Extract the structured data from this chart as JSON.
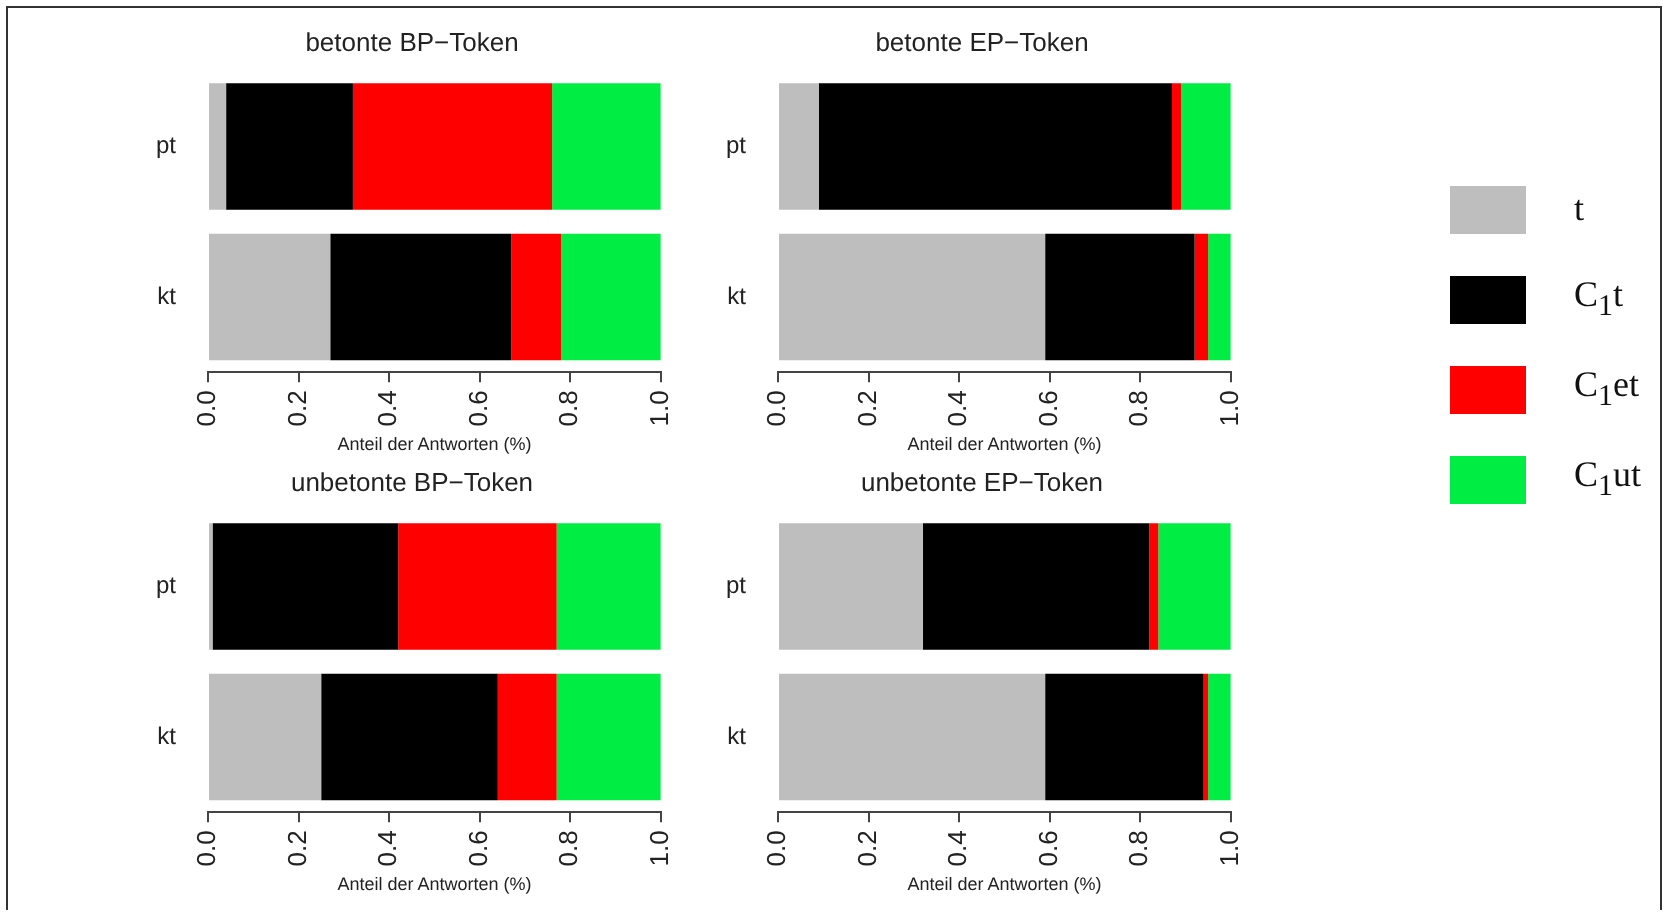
{
  "chart_data": [
    {
      "type": "bar",
      "orientation": "horizontal",
      "stacked": true,
      "title": "betonte BP−Token",
      "xlabel": "Anteil der Antworten (%)",
      "categories": [
        "pt",
        "kt"
      ],
      "xlim": [
        0,
        1
      ],
      "xticks": [
        {
          "value": 0,
          "label": "0.0"
        },
        {
          "value": 0.2,
          "label": "0.2"
        },
        {
          "value": 0.4,
          "label": "0.4"
        },
        {
          "value": 0.6,
          "label": "0.6"
        },
        {
          "value": 0.8,
          "label": "0.8"
        },
        {
          "value": 1,
          "label": "1.0"
        }
      ],
      "grid": false,
      "legend": false,
      "series": [
        {
          "color": "#bebebe",
          "values": [
            0.04,
            0.27
          ]
        },
        {
          "color": "#000000",
          "values": [
            0.28,
            0.4
          ]
        },
        {
          "color": "#ff0000",
          "values": [
            0.44,
            0.11
          ]
        },
        {
          "color": "#00ee44",
          "values": [
            0.24,
            0.22
          ]
        }
      ]
    },
    {
      "type": "bar",
      "orientation": "horizontal",
      "stacked": true,
      "title": "betonte EP−Token",
      "xlabel": "Anteil der Antworten (%)",
      "categories": [
        "pt",
        "kt"
      ],
      "xlim": [
        0,
        1
      ],
      "xticks": [
        {
          "value": 0,
          "label": "0.0"
        },
        {
          "value": 0.2,
          "label": "0.2"
        },
        {
          "value": 0.4,
          "label": "0.4"
        },
        {
          "value": 0.6,
          "label": "0.6"
        },
        {
          "value": 0.8,
          "label": "0.8"
        },
        {
          "value": 1,
          "label": "1.0"
        }
      ],
      "grid": false,
      "legend": "right",
      "series": [
        {
          "name": "t",
          "color": "#bebebe",
          "values": [
            0.09,
            0.59
          ]
        },
        {
          "name": "C$_{1}$t",
          "color": "#000000",
          "values": [
            0.78,
            0.33
          ]
        },
        {
          "name": "C$_{1}$et",
          "color": "#ff0000",
          "values": [
            0.02,
            0.03
          ]
        },
        {
          "name": "C$_{1}$ut",
          "color": "#00ee44",
          "values": [
            0.11,
            0.05
          ]
        }
      ]
    },
    {
      "type": "bar",
      "orientation": "horizontal",
      "stacked": true,
      "title": "unbetonte BP−Token",
      "xlabel": "Anteil der Antworten (%)",
      "categories": [
        "pt",
        "kt"
      ],
      "xlim": [
        0,
        1
      ],
      "xticks": [
        {
          "value": 0,
          "label": "0.0"
        },
        {
          "value": 0.2,
          "label": "0.2"
        },
        {
          "value": 0.4,
          "label": "0.4"
        },
        {
          "value": 0.6,
          "label": "0.6"
        },
        {
          "value": 0.8,
          "label": "0.8"
        },
        {
          "value": 1,
          "label": "1.0"
        }
      ],
      "grid": false,
      "legend": false,
      "series": [
        {
          "color": "#bebebe",
          "values": [
            0.01,
            0.25
          ]
        },
        {
          "color": "#000000",
          "values": [
            0.41,
            0.39
          ]
        },
        {
          "color": "#ff0000",
          "values": [
            0.35,
            0.13
          ]
        },
        {
          "color": "#00ee44",
          "values": [
            0.23,
            0.23
          ]
        }
      ]
    },
    {
      "type": "bar",
      "orientation": "horizontal",
      "stacked": true,
      "title": "unbetonte EP−Token",
      "xlabel": "Anteil der Antworten (%)",
      "categories": [
        "pt",
        "kt"
      ],
      "xlim": [
        0,
        1
      ],
      "xticks": [
        {
          "value": 0,
          "label": "0.0"
        },
        {
          "value": 0.2,
          "label": "0.2"
        },
        {
          "value": 0.4,
          "label": "0.4"
        },
        {
          "value": 0.6,
          "label": "0.6"
        },
        {
          "value": 0.8,
          "label": "0.8"
        },
        {
          "value": 1,
          "label": "1.0"
        }
      ],
      "grid": false,
      "legend": false,
      "series": [
        {
          "color": "#bebebe",
          "values": [
            0.32,
            0.59
          ]
        },
        {
          "color": "#000000",
          "values": [
            0.5,
            0.35
          ]
        },
        {
          "color": "#ff0000",
          "values": [
            0.02,
            0.01
          ]
        },
        {
          "color": "#00ee44",
          "values": [
            0.16,
            0.05
          ]
        }
      ]
    }
  ]
}
